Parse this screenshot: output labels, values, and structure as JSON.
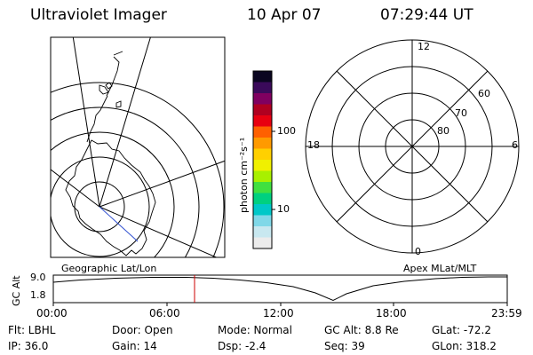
{
  "header": {
    "title": "Ultraviolet Imager",
    "date": "10 Apr 07",
    "time": "07:29:44 UT"
  },
  "geo_map": {
    "caption": "Geographic Lat/Lon"
  },
  "apex_map": {
    "caption": "Apex MLat/MLT",
    "mlt_labels": {
      "top": "12",
      "left": "18",
      "right": "6",
      "bottom": "0"
    },
    "lat_labels": [
      "60",
      "70",
      "80"
    ]
  },
  "colorbar": {
    "unit_label": "photon cm⁻²s⁻¹",
    "ticks": [
      "100",
      "10"
    ],
    "colors": [
      "#0a0520",
      "#3a0a5a",
      "#800060",
      "#b00020",
      "#e80010",
      "#ff6000",
      "#ff9a00",
      "#ffd000",
      "#f0f000",
      "#a8f000",
      "#40e040",
      "#00d080",
      "#00c8c8",
      "#80d8e8",
      "#c8e8f0",
      "#ececec"
    ]
  },
  "altitude_plot": {
    "ylabel": "GC Alt",
    "ymax_label": "9.0",
    "ymin_label": "1.8",
    "x_ticks": [
      "00:00",
      "06:00",
      "12:00",
      "18:00",
      "23:59"
    ],
    "marker_color": "#cc0000"
  },
  "info": {
    "filter": "Flt: LBHL",
    "ip": "IP: 36.0",
    "door": "Door: Open",
    "gain": "Gain: 14",
    "mode": "Mode: Normal",
    "dsp": "Dsp:   -2.4",
    "gc_alt": "GC Alt: 8.8 Re",
    "seq": "Seq: 39",
    "glat": "GLat: -72.2",
    "glon": "GLon: 318.2"
  }
}
